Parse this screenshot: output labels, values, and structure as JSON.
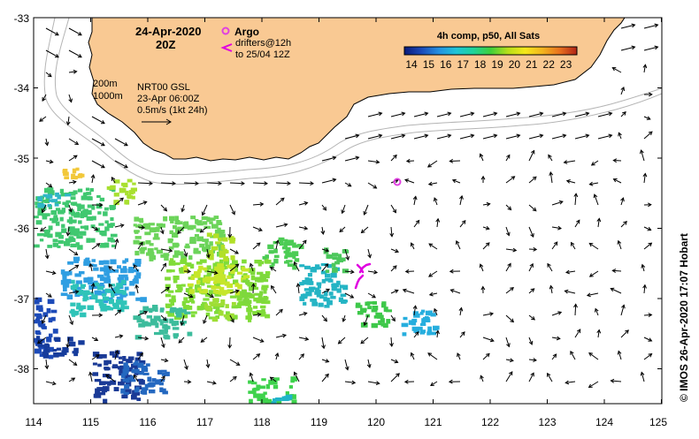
{
  "header": {
    "date": "24-Apr-2020",
    "time": "20Z"
  },
  "legend": {
    "argo_label": "Argo",
    "drifters_line1": "drifters@12h",
    "drifters_line2": "to 25/04 12Z",
    "depth_200": "200m",
    "depth_1000": "1000m",
    "model_line1": "NRT00 GSL",
    "model_line2": "23-Apr 06:00Z",
    "scale_label": "0.5m/s (1kt 24h)",
    "argo_color": "#e040e0",
    "drifter_color": "#e000e0"
  },
  "colorbar": {
    "title": "4h comp, p50, All Sats",
    "ticks": [
      "14",
      "15",
      "16",
      "17",
      "18",
      "19",
      "20",
      "21",
      "22",
      "23"
    ],
    "stops": [
      "#0a1a7a",
      "#1c4ab8",
      "#2590e0",
      "#1fc4d8",
      "#1ed39a",
      "#3fcf3a",
      "#b6de1a",
      "#f4e81a",
      "#f2b41e",
      "#e8711e",
      "#b02418"
    ]
  },
  "axes": {
    "x_ticks": [
      "114",
      "115",
      "116",
      "117",
      "118",
      "119",
      "120",
      "121",
      "122",
      "123",
      "124",
      "125"
    ],
    "y_ticks": [
      "-33",
      "-34",
      "-35",
      "-36",
      "-37",
      "-38"
    ]
  },
  "credit": "© IMOS 26-Apr-2020 17:07 Hobart",
  "colors": {
    "land": "#f9c993",
    "isobath": "#b4b4b4",
    "frame": "#000000",
    "sst_contour": "#dddddd"
  }
}
